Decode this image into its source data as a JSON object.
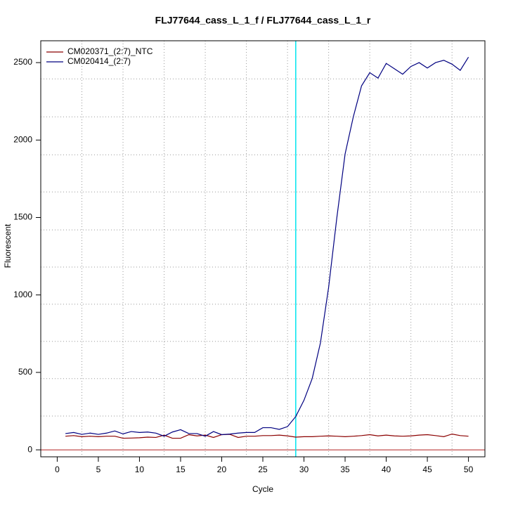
{
  "chart_data": {
    "type": "line",
    "title": "FLJ77644_cass_L_1_f / FLJ77644_cass_L_1_r",
    "x_label": "Cycle",
    "y_label": "Fluorescent",
    "x": [
      1,
      2,
      3,
      4,
      5,
      6,
      7,
      8,
      9,
      10,
      11,
      12,
      13,
      14,
      15,
      16,
      17,
      18,
      19,
      20,
      21,
      22,
      23,
      24,
      25,
      26,
      27,
      28,
      29,
      30,
      31,
      32,
      33,
      34,
      35,
      36,
      37,
      38,
      39,
      40,
      41,
      42,
      43,
      44,
      45,
      46,
      47,
      48,
      49,
      50
    ],
    "series": [
      {
        "name": "CM020371_(2:7)_NTC",
        "color": "#8b0000",
        "values": [
          88,
          92,
          85,
          88,
          85,
          88,
          88,
          75,
          76,
          78,
          82,
          80,
          95,
          75,
          75,
          98,
          90,
          95,
          80,
          98,
          100,
          80,
          88,
          88,
          92,
          92,
          95,
          90,
          82,
          85,
          85,
          88,
          90,
          88,
          85,
          88,
          92,
          98,
          90,
          95,
          90,
          88,
          90,
          95,
          98,
          92,
          85,
          102,
          92,
          88
        ]
      },
      {
        "name": "CM020414_(2:7)",
        "color": "#000080",
        "values": [
          105,
          112,
          100,
          108,
          100,
          108,
          122,
          103,
          118,
          112,
          115,
          108,
          88,
          115,
          130,
          105,
          105,
          88,
          118,
          98,
          102,
          108,
          112,
          112,
          143,
          143,
          132,
          150,
          215,
          320,
          460,
          690,
          1050,
          1500,
          1910,
          2150,
          2350,
          2435,
          2400,
          2495,
          2460,
          2425,
          2475,
          2500,
          2465,
          2500,
          2515,
          2490,
          2450,
          2535
        ]
      }
    ],
    "xlim": [
      -2,
      52
    ],
    "ylim": [
      -45,
      2641
    ],
    "xticks": [
      0,
      5,
      10,
      15,
      20,
      25,
      30,
      35,
      40,
      45,
      50
    ],
    "yticks": [
      0,
      500,
      1000,
      1500,
      2000,
      2500
    ],
    "grid": true,
    "xgrid": [
      3,
      8,
      13,
      18,
      23,
      28,
      33,
      38,
      43,
      48
    ],
    "ygrid": [
      218,
      460,
      700,
      940,
      1180,
      1420,
      1665,
      1905,
      2150,
      2395
    ],
    "threshold_cycle": 29,
    "threshold_color": "#00e5ee",
    "baseline": 0,
    "baseline_color": "#b22222",
    "legend": "top-left"
  }
}
